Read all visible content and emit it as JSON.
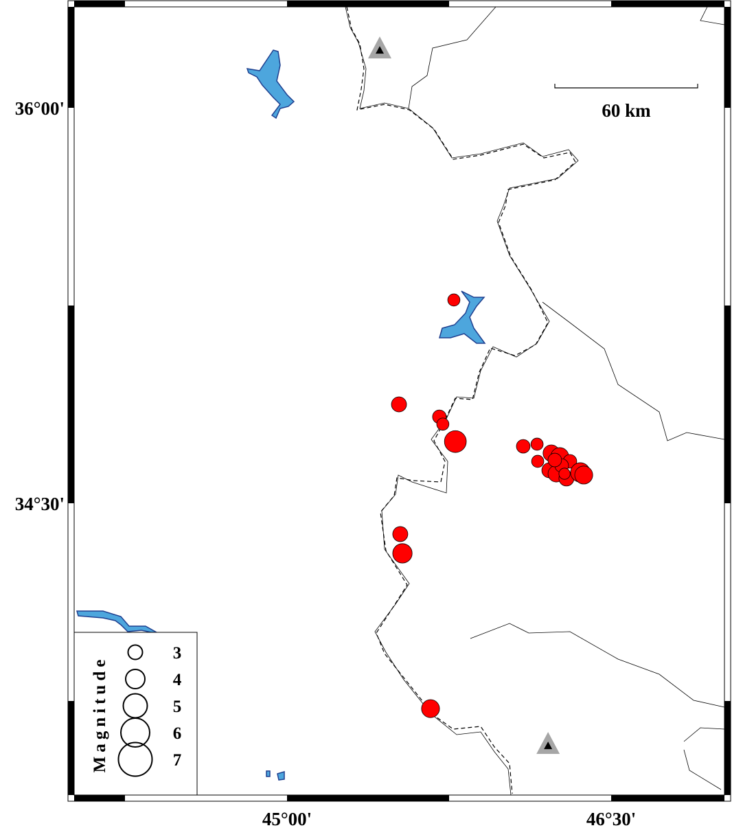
{
  "map": {
    "frame_lon": [
      44.35,
      47.4
    ],
    "frame_lat": [
      33.0,
      36.4
    ],
    "lat_labels": [
      {
        "lat": 36.0,
        "text": "36°00'"
      },
      {
        "lat": 34.5,
        "text": "34°30'"
      }
    ],
    "lon_labels": [
      {
        "lon": 45.0,
        "text": "45°00'"
      },
      {
        "lon": 46.5,
        "text": "46°30'"
      }
    ],
    "scale_bar": {
      "label": "60 km",
      "length_km": 60
    },
    "colors": {
      "event_fill": "#ff0000",
      "lake_fill": "#4da6dd",
      "station_fill": "#a6a6a6"
    },
    "stations": [
      {
        "lon": 45.429,
        "lat": 36.221
      },
      {
        "lon": 46.208,
        "lat": 33.583
      }
    ],
    "events": [
      {
        "lon": 45.772,
        "lat": 35.271,
        "mag": 2.4
      },
      {
        "lon": 45.518,
        "lat": 34.875,
        "mag": 3.0
      },
      {
        "lon": 45.705,
        "lat": 34.828,
        "mag": 2.7
      },
      {
        "lon": 45.721,
        "lat": 34.8,
        "mag": 2.4
      },
      {
        "lon": 45.779,
        "lat": 34.734,
        "mag": 4.4
      },
      {
        "lon": 45.524,
        "lat": 34.383,
        "mag": 3.0
      },
      {
        "lon": 45.534,
        "lat": 34.31,
        "mag": 3.9
      },
      {
        "lon": 45.664,
        "lat": 33.721,
        "mag": 3.6
      },
      {
        "lon": 46.093,
        "lat": 34.716,
        "mag": 2.7
      },
      {
        "lon": 46.157,
        "lat": 34.724,
        "mag": 2.4
      },
      {
        "lon": 46.16,
        "lat": 34.659,
        "mag": 2.4
      },
      {
        "lon": 46.223,
        "lat": 34.69,
        "mag": 3.3
      },
      {
        "lon": 46.262,
        "lat": 34.677,
        "mag": 3.6
      },
      {
        "lon": 46.214,
        "lat": 34.625,
        "mag": 3.0
      },
      {
        "lon": 46.246,
        "lat": 34.612,
        "mag": 3.3
      },
      {
        "lon": 46.293,
        "lat": 34.594,
        "mag": 3.0
      },
      {
        "lon": 46.309,
        "lat": 34.659,
        "mag": 2.7
      },
      {
        "lon": 46.271,
        "lat": 34.643,
        "mag": 2.7
      },
      {
        "lon": 46.239,
        "lat": 34.664,
        "mag": 2.7
      },
      {
        "lon": 46.284,
        "lat": 34.612,
        "mag": 2.2
      },
      {
        "lon": 46.357,
        "lat": 34.617,
        "mag": 3.9
      },
      {
        "lon": 46.373,
        "lat": 34.607,
        "mag": 3.6
      }
    ]
  },
  "legend": {
    "title": "Magnitude",
    "entries": [
      {
        "mag": 3,
        "label": "3"
      },
      {
        "mag": 4,
        "label": "4"
      },
      {
        "mag": 5,
        "label": "5"
      },
      {
        "mag": 6,
        "label": "6"
      },
      {
        "mag": 7,
        "label": "7"
      }
    ]
  }
}
